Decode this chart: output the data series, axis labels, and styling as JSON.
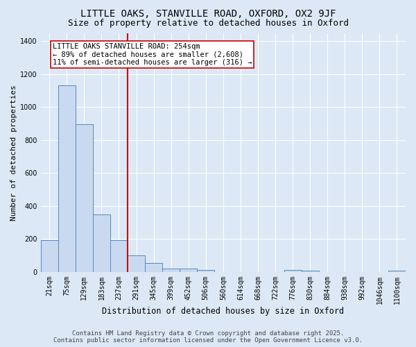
{
  "title1": "LITTLE OAKS, STANVILLE ROAD, OXFORD, OX2 9JF",
  "title2": "Size of property relative to detached houses in Oxford",
  "xlabel": "Distribution of detached houses by size in Oxford",
  "ylabel": "Number of detached properties",
  "categories": [
    "21sqm",
    "75sqm",
    "129sqm",
    "183sqm",
    "237sqm",
    "291sqm",
    "345sqm",
    "399sqm",
    "452sqm",
    "506sqm",
    "560sqm",
    "614sqm",
    "668sqm",
    "722sqm",
    "776sqm",
    "830sqm",
    "884sqm",
    "938sqm",
    "992sqm",
    "1046sqm",
    "1100sqm"
  ],
  "values": [
    195,
    1130,
    895,
    350,
    195,
    100,
    55,
    20,
    20,
    12,
    0,
    0,
    0,
    0,
    12,
    8,
    0,
    0,
    0,
    0,
    8
  ],
  "bar_color": "#c9daf0",
  "bar_edge_color": "#5588bb",
  "vline_pos": 4.5,
  "vline_color": "#cc0000",
  "annotation_text": "LITTLE OAKS STANVILLE ROAD: 254sqm\n← 89% of detached houses are smaller (2,608)\n11% of semi-detached houses are larger (316) →",
  "annotation_box_color": "#ffffff",
  "annotation_box_edge": "#cc0000",
  "ylim": [
    0,
    1450
  ],
  "yticks": [
    0,
    200,
    400,
    600,
    800,
    1000,
    1200,
    1400
  ],
  "background_color": "#dce8f5",
  "grid_color": "#ffffff",
  "footer1": "Contains HM Land Registry data © Crown copyright and database right 2025.",
  "footer2": "Contains public sector information licensed under the Open Government Licence v3.0.",
  "title1_fontsize": 10,
  "title2_fontsize": 9,
  "xlabel_fontsize": 8.5,
  "ylabel_fontsize": 8,
  "tick_fontsize": 7,
  "annotation_fontsize": 7.5,
  "footer_fontsize": 6.5
}
